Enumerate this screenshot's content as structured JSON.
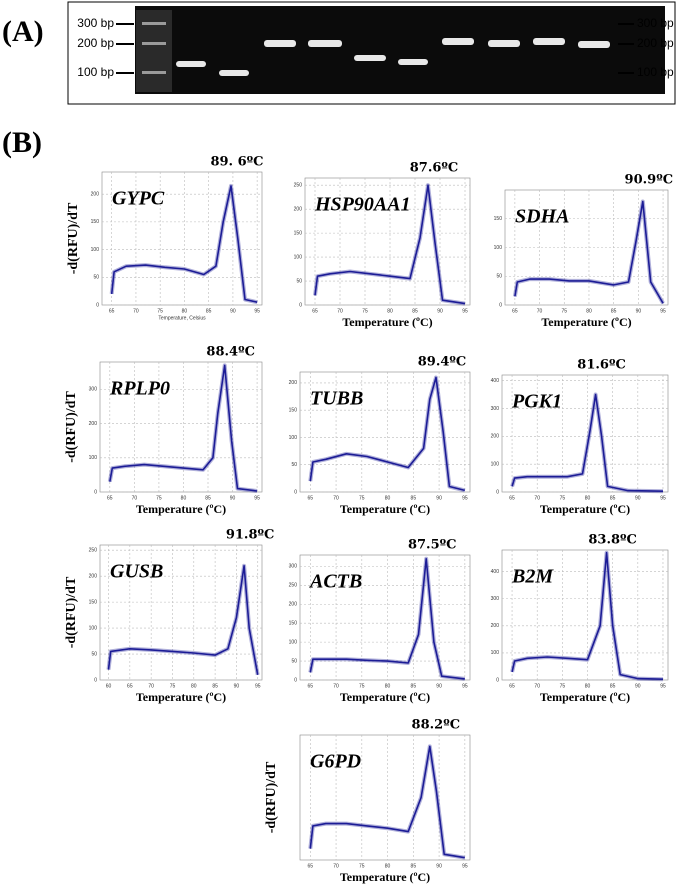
{
  "panel_a": {
    "label": "(A)",
    "ladder_left": [
      "300 bp",
      "200 bp",
      "100 bp"
    ],
    "ladder_right": [
      "300 bp",
      "200 bp",
      "100 bp"
    ]
  },
  "panel_b": {
    "label": "(B)"
  },
  "chart_data": [
    {
      "type": "line",
      "title": "GYPC",
      "annotation": "89. 6ºC",
      "xlabel": "Temperature, Celsius",
      "ylabel": "-d(RFU)/dT",
      "color": "#1c1c96",
      "grid": true,
      "x": [
        65,
        65.5,
        68,
        72,
        76,
        80,
        84,
        86.5,
        88,
        89.6,
        91,
        92.5,
        95
      ],
      "values": [
        20,
        60,
        70,
        72,
        68,
        65,
        55,
        70,
        150,
        215,
        120,
        10,
        5
      ],
      "xlim": [
        63,
        96
      ],
      "xticks": [
        65,
        70,
        75,
        80,
        85,
        90,
        95
      ],
      "ylim": [
        0,
        240
      ],
      "yticks": [
        0,
        50,
        100,
        150,
        200
      ]
    },
    {
      "type": "line",
      "title": "HSP90AA1",
      "annotation": "87.6ºC",
      "xlabel": "Temperature (ºC)",
      "color": "#1c1c96",
      "grid": true,
      "x": [
        65,
        65.5,
        68,
        72,
        76,
        80,
        84,
        86,
        87.6,
        89,
        90.5,
        95
      ],
      "values": [
        20,
        60,
        65,
        70,
        65,
        60,
        55,
        140,
        250,
        130,
        10,
        3
      ],
      "xlim": [
        63,
        96
      ],
      "xticks": [
        65,
        70,
        75,
        80,
        85,
        90,
        95
      ],
      "ylim": [
        0,
        265
      ],
      "yticks": [
        0,
        50,
        100,
        150,
        200,
        250
      ]
    },
    {
      "type": "line",
      "title": "SDHA",
      "annotation": "90.9ºC",
      "xlabel": "Temperature (ºC)",
      "color": "#1c1c96",
      "grid": true,
      "x": [
        65,
        65.5,
        68,
        72,
        76,
        80,
        85,
        88,
        89.5,
        90.9,
        92.5,
        95
      ],
      "values": [
        15,
        40,
        45,
        45,
        42,
        42,
        35,
        40,
        110,
        180,
        40,
        3
      ],
      "xlim": [
        63,
        96
      ],
      "xticks": [
        65,
        70,
        75,
        80,
        85,
        90,
        95
      ],
      "ylim": [
        0,
        200
      ],
      "yticks": [
        0,
        50,
        100,
        150
      ]
    },
    {
      "type": "line",
      "title": "RPLP0",
      "annotation": "88.4ºC",
      "xlabel": "Temperature (ºC)",
      "ylabel": "-d(RFU)/dT",
      "color": "#1c1c96",
      "grid": true,
      "x": [
        65,
        65.5,
        68,
        72,
        76,
        80,
        84,
        86,
        87,
        88.4,
        89.8,
        91,
        95
      ],
      "values": [
        30,
        70,
        75,
        80,
        75,
        70,
        65,
        100,
        230,
        370,
        150,
        10,
        3
      ],
      "xlim": [
        63,
        96
      ],
      "xticks": [
        65,
        70,
        75,
        80,
        85,
        90,
        95
      ],
      "ylim": [
        0,
        380
      ],
      "yticks": [
        0,
        100,
        200,
        300
      ]
    },
    {
      "type": "line",
      "title": "TUBB",
      "annotation": "89.4ºC",
      "xlabel": "Temperature (ºC)",
      "color": "#1c1c96",
      "grid": true,
      "x": [
        65,
        65.5,
        68,
        72,
        76,
        80,
        84,
        87,
        88.2,
        89.4,
        90.8,
        92,
        95
      ],
      "values": [
        20,
        55,
        60,
        70,
        65,
        55,
        45,
        80,
        170,
        210,
        110,
        10,
        3
      ],
      "xlim": [
        63,
        96
      ],
      "xticks": [
        65,
        70,
        75,
        80,
        85,
        90,
        95
      ],
      "ylim": [
        0,
        220
      ],
      "yticks": [
        0,
        50,
        100,
        150,
        200
      ]
    },
    {
      "type": "line",
      "title": "PGK1",
      "annotation": "81.6ºC",
      "xlabel": "Temperature (ºC)",
      "color": "#1c1c96",
      "grid": true,
      "x": [
        65,
        65.5,
        68,
        72,
        76,
        79,
        80.5,
        81.6,
        82.8,
        84,
        88,
        95
      ],
      "values": [
        20,
        50,
        55,
        55,
        55,
        65,
        220,
        350,
        200,
        20,
        5,
        3
      ],
      "xlim": [
        63,
        96
      ],
      "xticks": [
        65,
        70,
        75,
        80,
        85,
        90,
        95
      ],
      "ylim": [
        0,
        420
      ],
      "yticks": [
        0,
        100,
        200,
        300,
        400
      ]
    },
    {
      "type": "line",
      "title": "GUSB",
      "annotation": "91.8ºC",
      "xlabel": "Temperature (ºC)",
      "ylabel": "-d(RFU)/dT",
      "color": "#1c1c96",
      "grid": true,
      "x": [
        60,
        60.5,
        65,
        70,
        75,
        80,
        85,
        88,
        90,
        91.8,
        93,
        95
      ],
      "values": [
        20,
        55,
        60,
        58,
        55,
        52,
        48,
        60,
        120,
        220,
        100,
        10
      ],
      "xlim": [
        58,
        96
      ],
      "xticks": [
        60,
        65,
        70,
        75,
        80,
        85,
        90,
        95
      ],
      "ylim": [
        0,
        260
      ],
      "yticks": [
        0,
        50,
        100,
        150,
        200,
        250
      ]
    },
    {
      "type": "line",
      "title": "ACTB",
      "annotation": "87.5ºC",
      "xlabel": "Temperature (ºC)",
      "color": "#1c1c96",
      "grid": true,
      "x": [
        65,
        65.5,
        68,
        72,
        76,
        80,
        84,
        86,
        87.5,
        89,
        90.5,
        95
      ],
      "values": [
        20,
        55,
        55,
        55,
        52,
        50,
        45,
        120,
        320,
        100,
        10,
        3
      ],
      "xlim": [
        63,
        96
      ],
      "xticks": [
        65,
        70,
        75,
        80,
        85,
        90,
        95
      ],
      "ylim": [
        0,
        330
      ],
      "yticks": [
        0,
        50,
        100,
        150,
        200,
        250,
        300
      ]
    },
    {
      "type": "line",
      "title": "B2M",
      "annotation": "83.8ºC",
      "xlabel": "Temperature (ºC)",
      "color": "#1c1c96",
      "grid": true,
      "x": [
        65,
        65.5,
        68,
        72,
        76,
        80,
        82.5,
        83.8,
        85,
        86.5,
        90,
        95
      ],
      "values": [
        30,
        70,
        80,
        85,
        80,
        75,
        200,
        470,
        200,
        20,
        5,
        3
      ],
      "xlim": [
        63,
        96
      ],
      "xticks": [
        65,
        70,
        75,
        80,
        85,
        90,
        95
      ],
      "ylim": [
        0,
        480
      ],
      "yticks": [
        0,
        100,
        200,
        300,
        400
      ]
    },
    {
      "type": "line",
      "title": "G6PD",
      "annotation": "88.2ºC",
      "xlabel": "Temperature (ºC)",
      "ylabel": "-d(RFU)/dT",
      "color": "#1c1c96",
      "grid": true,
      "x": [
        65,
        65.5,
        68,
        72,
        76,
        80,
        84,
        86.5,
        88.2,
        89.5,
        91,
        95
      ],
      "values": [
        10,
        30,
        32,
        32,
        30,
        28,
        25,
        55,
        100,
        60,
        5,
        2
      ],
      "xlim": [
        63,
        96
      ],
      "xticks": [
        65,
        70,
        75,
        80,
        85,
        90,
        95
      ],
      "ylim": [
        0,
        110
      ]
    }
  ]
}
